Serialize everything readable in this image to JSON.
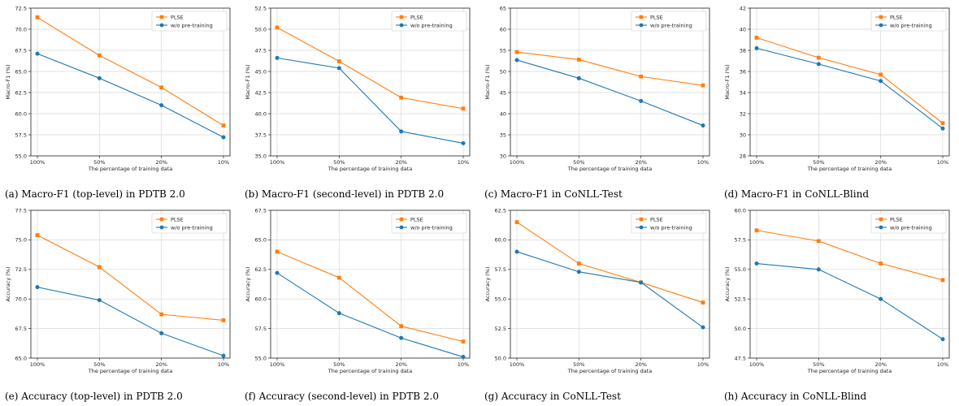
{
  "colors": {
    "plse": "#ff7f0e",
    "wo": "#1f77b4",
    "grid": "#d9d9d9",
    "axis": "#222222"
  },
  "chart_data": [
    {
      "type": "line",
      "caption": "(a) Macro-F1 (top-level) in PDTB 2.0",
      "xlabel": "The percentage of training data",
      "ylabel": "Macro-F1 (%)",
      "categories": [
        "100%",
        "50%",
        "20%",
        "10%"
      ],
      "ylim": [
        55.0,
        72.5
      ],
      "yticks": [
        "55.0",
        "57.5",
        "60.0",
        "62.5",
        "65.0",
        "67.5",
        "70.0",
        "72.5"
      ],
      "legend_position": "top-right",
      "grid": true,
      "series": [
        {
          "name": "PLSE",
          "values": [
            71.4,
            66.9,
            63.1,
            58.6
          ]
        },
        {
          "name": "w/o pre-training",
          "values": [
            67.1,
            64.2,
            61.0,
            57.2
          ]
        }
      ]
    },
    {
      "type": "line",
      "caption": "(b) Macro-F1 (second-level) in PDTB 2.0",
      "xlabel": "The percentage of training data",
      "ylabel": "Macro-F1 (%)",
      "categories": [
        "100%",
        "50%",
        "20%",
        "10%"
      ],
      "ylim": [
        35.0,
        52.5
      ],
      "yticks": [
        "35.0",
        "37.5",
        "40.0",
        "42.5",
        "45.0",
        "47.5",
        "50.0",
        "52.5"
      ],
      "legend_position": "top-right",
      "grid": true,
      "series": [
        {
          "name": "PLSE",
          "values": [
            50.2,
            46.2,
            41.9,
            40.6
          ]
        },
        {
          "name": "w/o pre-training",
          "values": [
            46.6,
            45.4,
            37.9,
            36.5
          ]
        }
      ]
    },
    {
      "type": "line",
      "caption": "(c) Macro-F1 in CoNLL-Test",
      "xlabel": "The percentage of training data",
      "ylabel": "Macro-F1 (%)",
      "categories": [
        "100%",
        "50%",
        "20%",
        "10%"
      ],
      "ylim": [
        30,
        65
      ],
      "yticks": [
        "30",
        "35",
        "40",
        "45",
        "50",
        "55",
        "60",
        "65"
      ],
      "legend_position": "top-right",
      "grid": true,
      "series": [
        {
          "name": "PLSE",
          "values": [
            54.6,
            52.8,
            48.8,
            46.7
          ]
        },
        {
          "name": "w/o pre-training",
          "values": [
            52.7,
            48.4,
            43.0,
            37.2
          ]
        }
      ]
    },
    {
      "type": "line",
      "caption": "(d) Macro-F1 in CoNLL-Blind",
      "xlabel": "The percentage of training data",
      "ylabel": "Macro-F1 (%)",
      "categories": [
        "100%",
        "50%",
        "20%",
        "10%"
      ],
      "ylim": [
        28,
        42
      ],
      "yticks": [
        "28",
        "30",
        "32",
        "34",
        "36",
        "38",
        "40",
        "42"
      ],
      "legend_position": "top-right",
      "grid": true,
      "series": [
        {
          "name": "PLSE",
          "values": [
            39.2,
            37.3,
            35.7,
            31.1
          ]
        },
        {
          "name": "w/o pre-training",
          "values": [
            38.2,
            36.7,
            35.1,
            30.6
          ]
        }
      ]
    },
    {
      "type": "line",
      "caption": "(e) Accuracy (top-level) in PDTB 2.0",
      "xlabel": "The percentage of training data",
      "ylabel": "Accuracy (%)",
      "categories": [
        "100%",
        "50%",
        "20%",
        "10%"
      ],
      "ylim": [
        65.0,
        77.5
      ],
      "yticks": [
        "65.0",
        "67.5",
        "70.0",
        "72.5",
        "75.0",
        "77.5"
      ],
      "legend_position": "top-right",
      "grid": true,
      "series": [
        {
          "name": "PLSE",
          "values": [
            75.4,
            72.7,
            68.7,
            68.2
          ]
        },
        {
          "name": "w/o pre-training",
          "values": [
            71.0,
            69.9,
            67.1,
            65.2
          ]
        }
      ]
    },
    {
      "type": "line",
      "caption": "(f) Accuracy (second-level) in PDTB 2.0",
      "xlabel": "The percentage of training data",
      "ylabel": "Accuracy (%)",
      "categories": [
        "100%",
        "50%",
        "20%",
        "10%"
      ],
      "ylim": [
        55.0,
        67.5
      ],
      "yticks": [
        "55.0",
        "57.5",
        "60.0",
        "62.5",
        "65.0",
        "67.5"
      ],
      "legend_position": "top-right",
      "grid": true,
      "series": [
        {
          "name": "PLSE",
          "values": [
            64.0,
            61.8,
            57.7,
            56.4
          ]
        },
        {
          "name": "w/o pre-training",
          "values": [
            62.2,
            58.8,
            56.7,
            55.1
          ]
        }
      ]
    },
    {
      "type": "line",
      "caption": "(g) Accuracy in CoNLL-Test",
      "xlabel": "The percentage of training data",
      "ylabel": "Accuracy (%)",
      "categories": [
        "100%",
        "50%",
        "20%",
        "10%"
      ],
      "ylim": [
        50.0,
        62.5
      ],
      "yticks": [
        "50.0",
        "52.5",
        "55.0",
        "57.5",
        "60.0",
        "62.5"
      ],
      "legend_position": "top-right",
      "grid": true,
      "series": [
        {
          "name": "PLSE",
          "values": [
            61.5,
            58.0,
            56.4,
            54.7
          ]
        },
        {
          "name": "w/o pre-training",
          "values": [
            59.0,
            57.3,
            56.4,
            52.6
          ]
        }
      ]
    },
    {
      "type": "line",
      "caption": "(h) Accuracy in CoNLL-Blind",
      "xlabel": "The percentage of training data",
      "ylabel": "Accuracy (%)",
      "categories": [
        "100%",
        "50%",
        "20%",
        "10%"
      ],
      "ylim": [
        47.5,
        60.0
      ],
      "yticks": [
        "47.5",
        "50.0",
        "52.5",
        "55.0",
        "57.5",
        "60.0"
      ],
      "legend_position": "top-right",
      "grid": true,
      "series": [
        {
          "name": "PLSE",
          "values": [
            58.3,
            57.4,
            55.5,
            54.1
          ]
        },
        {
          "name": "w/o pre-training",
          "values": [
            55.5,
            55.0,
            52.5,
            49.1
          ]
        }
      ]
    }
  ]
}
